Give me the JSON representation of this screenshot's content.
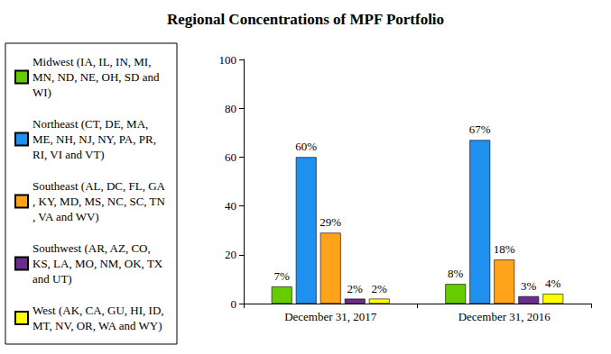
{
  "chart_data": {
    "type": "bar",
    "title": "Regional Concentrations of MPF Portfolio",
    "categories": [
      "December 31, 2017",
      "December 31, 2016"
    ],
    "series": [
      {
        "name": "Midwest (IA, IL, IN, MI, MN, ND, NE, OH, SD and WI)",
        "color": "#66cc00",
        "values": [
          7,
          8
        ],
        "value_labels": [
          "7%",
          "8%"
        ]
      },
      {
        "name": "Northeast (CT, DE, MA, ME, NH, NJ, NY, PA, PR, RI, VI and VT)",
        "color": "#1e90f0",
        "values": [
          60,
          67
        ],
        "value_labels": [
          "60%",
          "67%"
        ]
      },
      {
        "name": "Southeast (AL, DC, FL, GA, KY, MD, MS, NC, SC, TN, VA and WV)",
        "color": "#ffa31a",
        "values": [
          29,
          18
        ],
        "value_labels": [
          "29%",
          "18%"
        ]
      },
      {
        "name": "Southwest (AR, AZ, CO, KS, LA, MO, NM, OK, TX and UT)",
        "color": "#6b2c8f",
        "values": [
          2,
          3
        ],
        "value_labels": [
          "2%",
          "3%"
        ]
      },
      {
        "name": "West (AK, CA, GU, HI, ID, MT, NV, OR, WA and WY)",
        "color": "#ffff00",
        "values": [
          2,
          4
        ],
        "value_labels": [
          "2%",
          "4%"
        ]
      }
    ],
    "ylim": [
      0,
      100
    ],
    "yticks": [
      0,
      20,
      40,
      60,
      80,
      100
    ],
    "grid": false,
    "legend": "left",
    "data_labels": true
  }
}
